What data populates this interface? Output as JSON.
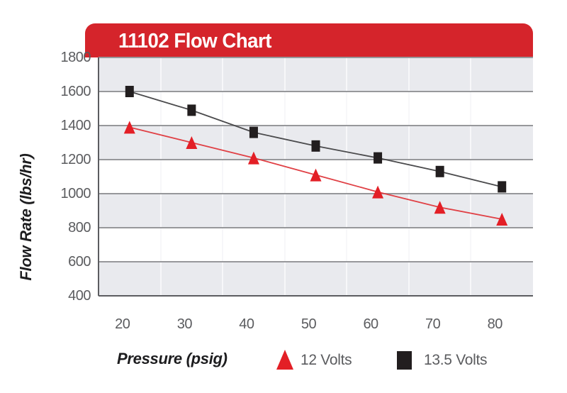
{
  "header": {
    "title": "11102 Flow Chart",
    "banner_color": "#d5242b",
    "title_color": "#ffffff"
  },
  "chart_data": {
    "type": "line",
    "title": "11102 Flow Chart",
    "xlabel": "Pressure (psig)",
    "ylabel": "Flow Rate (lbs/hr)",
    "x_tick_labels": [
      "20",
      "30",
      "40",
      "50",
      "60",
      "70",
      "80"
    ],
    "y_tick_labels": [
      "1800",
      "1600",
      "1400",
      "1200",
      "1000",
      "800",
      "600",
      "400"
    ],
    "ylim": [
      400,
      1800
    ],
    "xlim_categories": 7,
    "grid": "horizontal gray gridlines every 200; alternating gray/white horizontal bands; light vertical gridlines between categories",
    "legend_position": "bottom",
    "x": [
      21,
      31,
      41,
      51,
      61,
      71,
      81
    ],
    "series": [
      {
        "name": "12 Volts",
        "marker": "triangle",
        "marker_color": "#e31f26",
        "line_color": "#e04045",
        "values": [
          1390,
          1300,
          1210,
          1110,
          1010,
          920,
          850
        ]
      },
      {
        "name": "13.5 Volts",
        "marker": "square",
        "marker_color": "#221e1f",
        "line_color": "#4a4a4c",
        "values": [
          1600,
          1490,
          1360,
          1280,
          1210,
          1130,
          1040
        ]
      }
    ],
    "band_gray": "#e9eaee",
    "gridline_color": "#97989b",
    "axis_line_color": "#5b5c60",
    "tick_text_color": "#5b5c5f"
  }
}
